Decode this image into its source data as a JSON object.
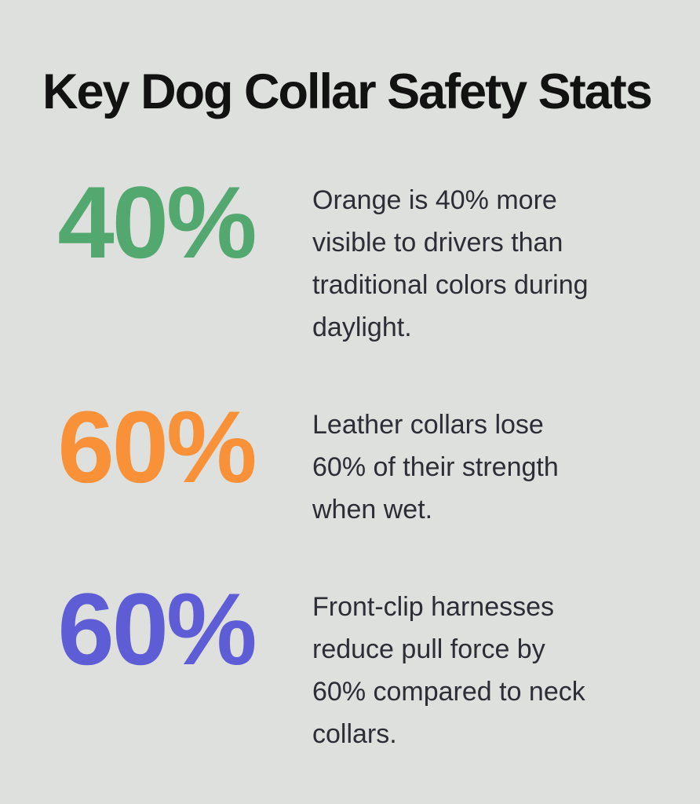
{
  "page": {
    "background_color": "#dee0de",
    "title": "Key Dog Collar Safety Stats",
    "title_color": "#121212",
    "body_text_color": "#2d2d35"
  },
  "stats": [
    {
      "value": "40%",
      "color": "#52a86e",
      "description": "Orange is 40% more visible to drivers than traditional colors during daylight.",
      "lines": [
        "Orange is 40% more",
        "visible to drivers than",
        "traditional colors during",
        "daylight."
      ]
    },
    {
      "value": "60%",
      "color": "#f89137",
      "description": "Leather collars lose 60% of their strength when wet.",
      "lines": [
        "Leather collars lose",
        "60% of their strength",
        "when wet."
      ]
    },
    {
      "value": "60%",
      "color": "#5f5dd6",
      "description": "Front-clip harnesses reduce pull force by 60% compared to neck collars.",
      "lines": [
        "Front-clip harnesses",
        "reduce pull force by",
        "60% compared to neck",
        "collars."
      ]
    }
  ],
  "chart_data": {
    "type": "table",
    "title": "Key Dog Collar Safety Stats",
    "categories": [
      "Orange collar visibility increase vs traditional colors in daylight",
      "Leather collar strength loss when wet",
      "Front-clip harness pull force reduction vs neck collars"
    ],
    "values": [
      40,
      60,
      60
    ],
    "unit": "%",
    "colors": [
      "#52a86e",
      "#f89137",
      "#5f5dd6"
    ],
    "legend_position": "none",
    "grid": false
  }
}
